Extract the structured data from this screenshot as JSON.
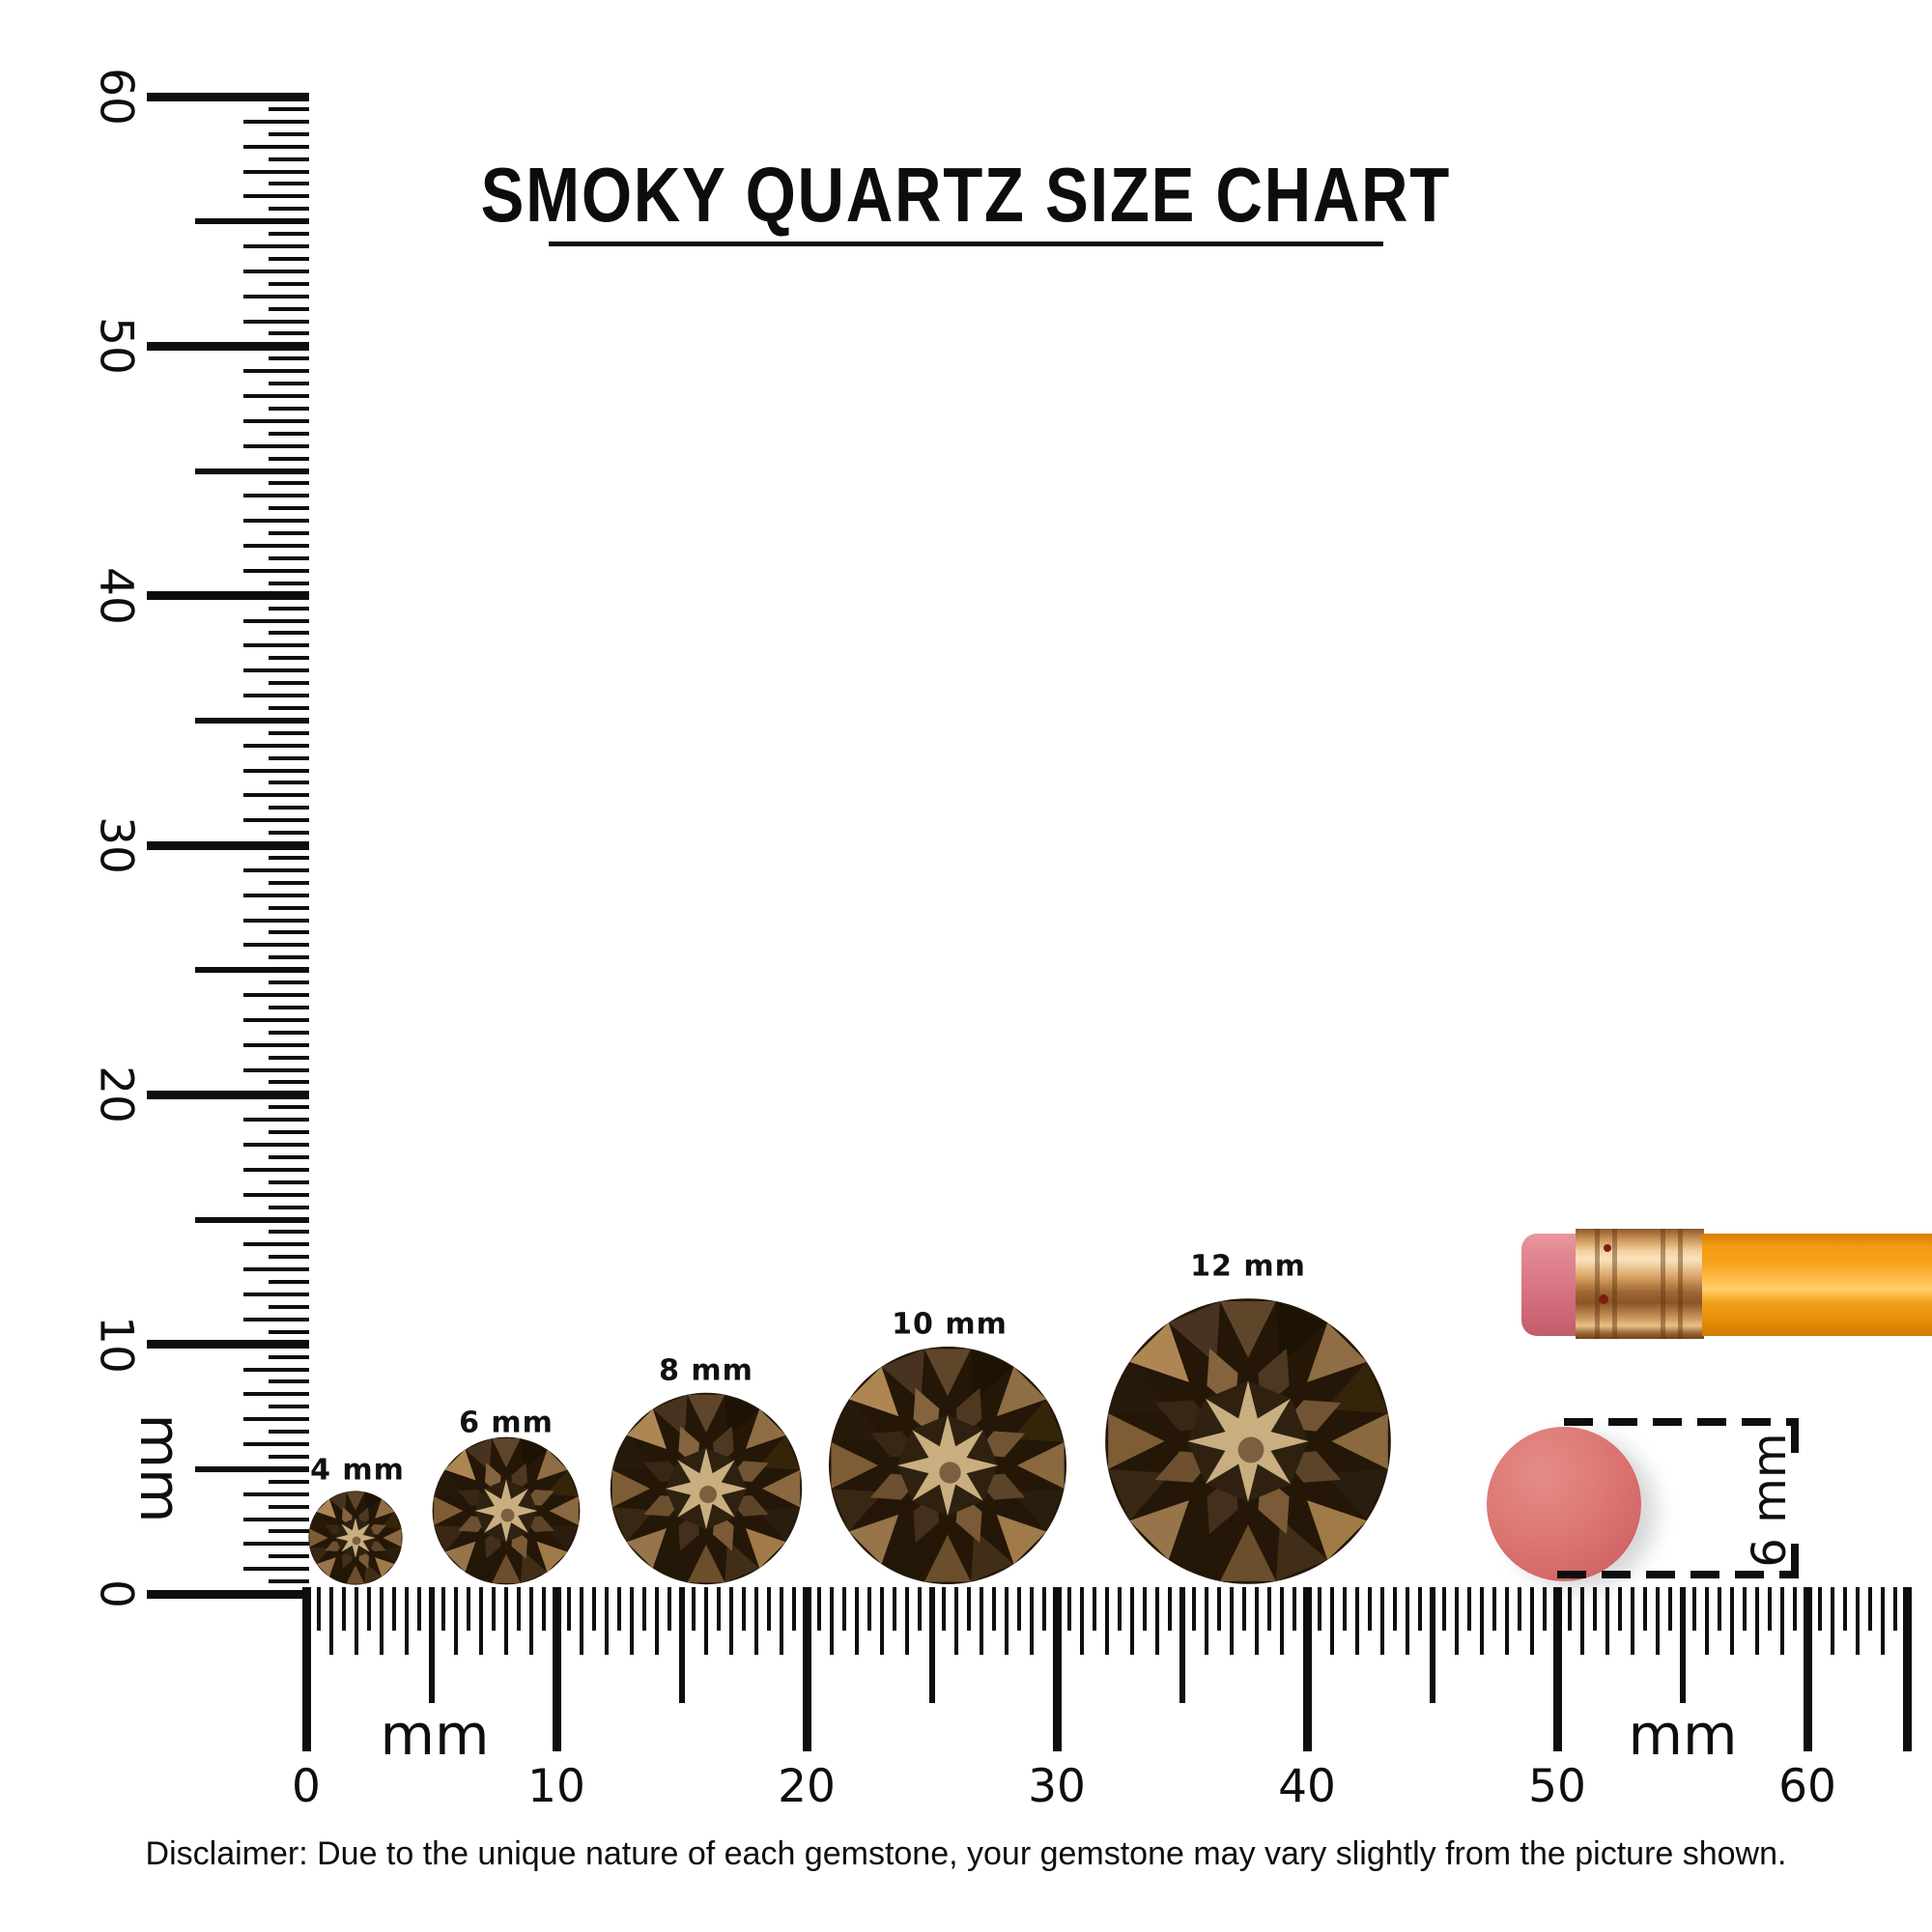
{
  "title": {
    "text": "SMOKY QUARTZ SIZE CHART"
  },
  "vertical_ruler": {
    "unit": "mm",
    "labels": [
      {
        "text": "0",
        "mm": 0
      },
      {
        "text": "10",
        "mm": 10
      },
      {
        "text": "20",
        "mm": 20
      },
      {
        "text": "30",
        "mm": 30
      },
      {
        "text": "40",
        "mm": 40
      },
      {
        "text": "50",
        "mm": 50
      },
      {
        "text": "60",
        "mm": 60
      }
    ]
  },
  "horizontal_ruler": {
    "unit": "mm",
    "labels": [
      {
        "text": "0",
        "mm": 0
      },
      {
        "text": "10",
        "mm": 10
      },
      {
        "text": "20",
        "mm": 20
      },
      {
        "text": "30",
        "mm": 30
      },
      {
        "text": "40",
        "mm": 40
      },
      {
        "text": "50",
        "mm": 50
      },
      {
        "text": "60",
        "mm": 60
      }
    ]
  },
  "gems": {
    "items": [
      {
        "label": "4 mm",
        "size_mm": 4
      },
      {
        "label": "6 mm",
        "size_mm": 6
      },
      {
        "label": "8 mm",
        "size_mm": 8
      },
      {
        "label": "10 mm",
        "size_mm": 10
      },
      {
        "label": "12 mm",
        "size_mm": 12
      }
    ]
  },
  "eraser_measure": {
    "label": "6 mm"
  },
  "disclaimer": {
    "text": "Disclaimer: Due to the unique nature of each gemstone, your gemstone may vary slightly from the picture shown."
  },
  "colors": {
    "ink": "#0e0e0e",
    "gem_dark": "#241708",
    "gem_mid": "#6b4e2c",
    "gem_light": "#a8824e",
    "gem_star": "#c9ae80",
    "eraser_pink": "#d96f6d",
    "eraser_tip_pink": "#d87482",
    "ferrule_copper": "#d9a263",
    "pencil_orange": "#f8a41f"
  }
}
